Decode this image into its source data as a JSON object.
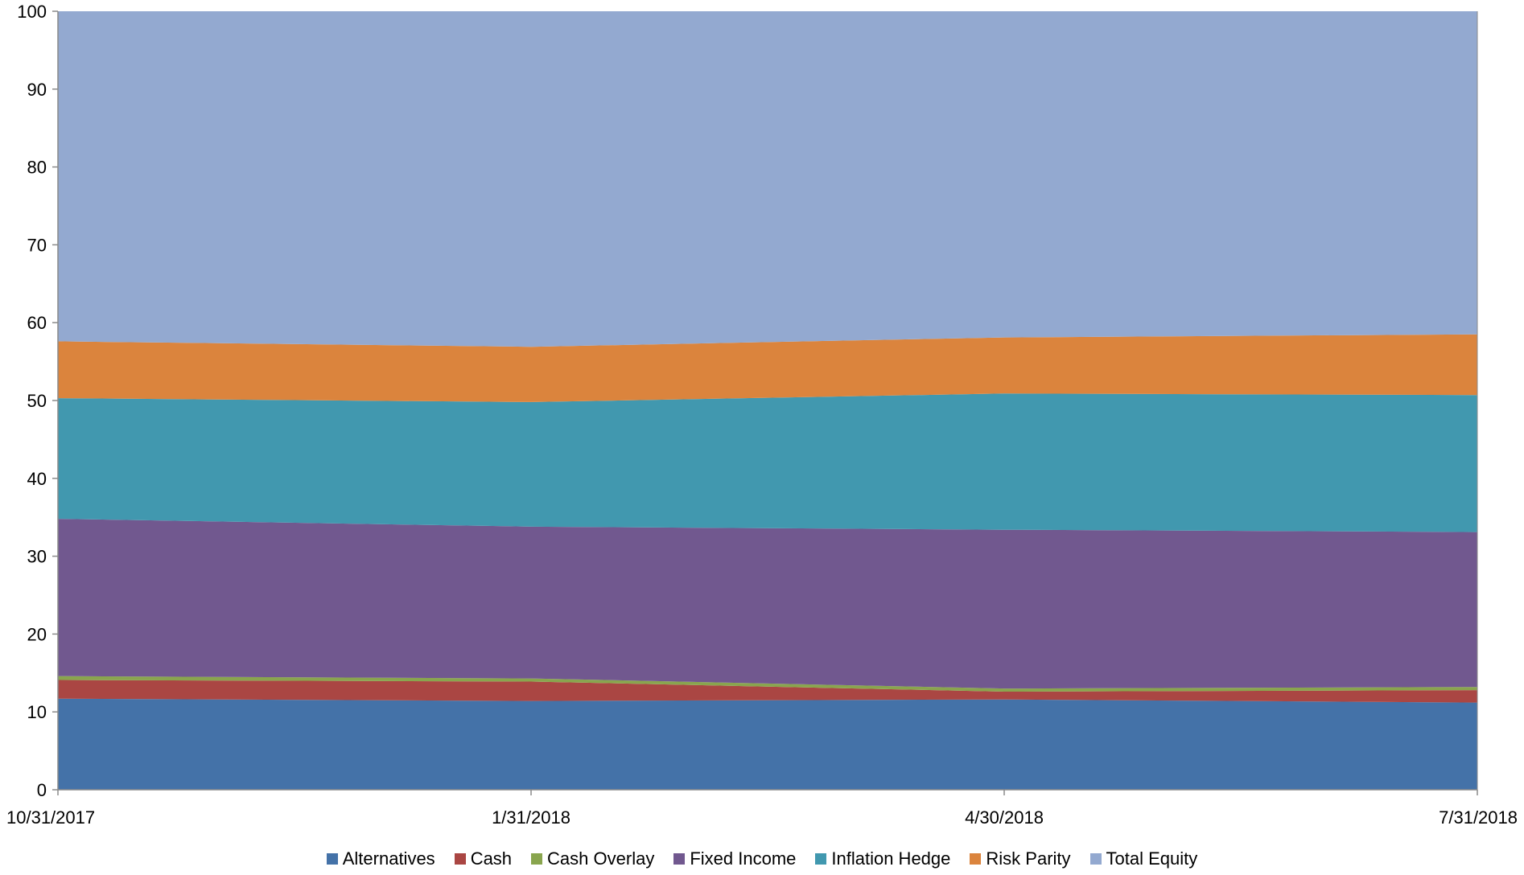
{
  "chart_data": {
    "type": "area",
    "stacked": true,
    "x": [
      "10/31/2017",
      "1/31/2018",
      "4/30/2018",
      "7/31/2018"
    ],
    "x_tick_labels": [
      "10/31/2017",
      "1/31/2018",
      "4/30/2018",
      "7/31/2018"
    ],
    "ylim": [
      0,
      100
    ],
    "y_ticks": [
      0,
      10,
      20,
      30,
      40,
      50,
      60,
      70,
      80,
      90,
      100
    ],
    "grid": false,
    "legend_position": "bottom",
    "series": [
      {
        "name": "Alternatives",
        "color": "#4472A8",
        "values": [
          11.7,
          11.4,
          11.6,
          11.2
        ]
      },
      {
        "name": "Cash",
        "color": "#AA4643",
        "values": [
          2.4,
          2.5,
          1.0,
          1.6
        ]
      },
      {
        "name": "Cash Overlay",
        "color": "#89A54E",
        "values": [
          0.5,
          0.4,
          0.4,
          0.4
        ]
      },
      {
        "name": "Fixed Income",
        "color": "#71588F",
        "values": [
          20.2,
          19.5,
          20.4,
          19.9
        ]
      },
      {
        "name": "Inflation Hedge",
        "color": "#4198AF",
        "values": [
          15.5,
          16.0,
          17.5,
          17.6
        ]
      },
      {
        "name": "Risk Parity",
        "color": "#DB843D",
        "values": [
          7.3,
          7.1,
          7.2,
          7.8
        ]
      },
      {
        "name": "Total Equity",
        "color": "#93A9D0",
        "values": [
          42.4,
          43.1,
          41.9,
          41.5
        ]
      }
    ]
  }
}
